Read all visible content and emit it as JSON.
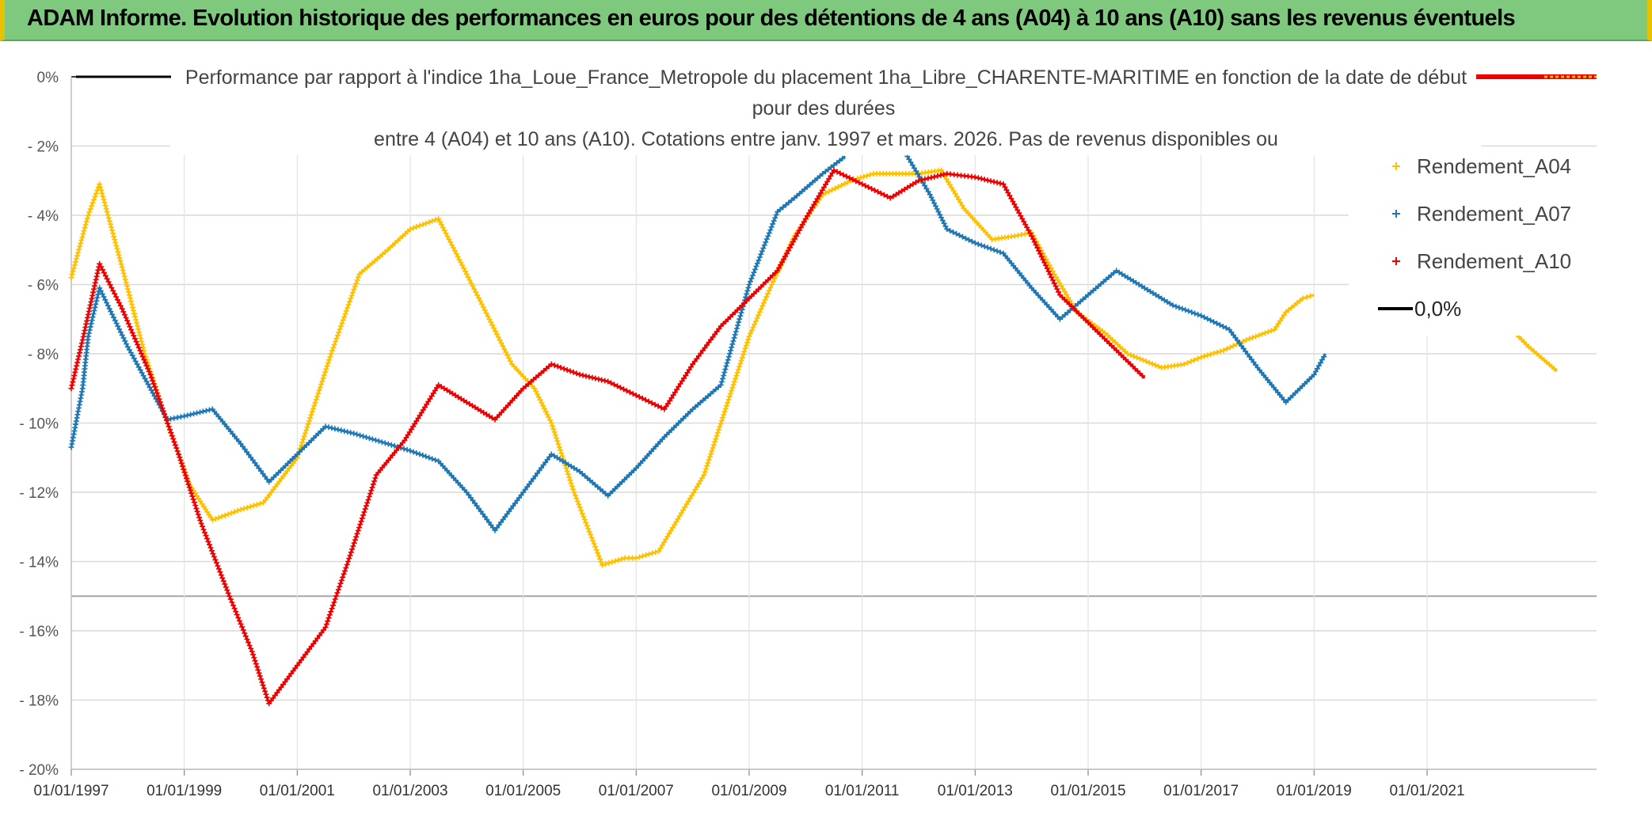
{
  "header": {
    "title": "ADAM Informe. Evolution historique des performances en euros pour des détentions de 4 ans (A04) à 10 ans (A10) sans les revenus éventuels",
    "background_color": "#7fc97f"
  },
  "chart_data": {
    "type": "line",
    "title_lines": [
      "Performance par rapport à l'indice 1ha_Loue_France_Metropole  du placement 1ha_Libre_CHARENTE-MARITIME en fonction de la date de début",
      "pour des durées",
      "entre 4 (A04) et 10 ans (A10). Cotations entre janv. 1997 et mars. 2026. Pas de revenus disponibles ou"
    ],
    "xlabel": "",
    "ylabel": "",
    "x_range": [
      1997.0,
      2024.0
    ],
    "ylim": [
      -20,
      0
    ],
    "x_tick_labels": [
      "01/01/1997",
      "01/01/1999",
      "01/01/2001",
      "01/01/2003",
      "01/01/2005",
      "01/01/2007",
      "01/01/2009",
      "01/01/2011",
      "01/01/2013",
      "01/01/2015",
      "01/01/2017",
      "01/01/2019",
      "01/01/2021"
    ],
    "x_tick_values": [
      1997,
      1999,
      2001,
      2003,
      2005,
      2007,
      2009,
      2011,
      2013,
      2015,
      2017,
      2019,
      2021
    ],
    "y_tick_labels": [
      "0%",
      "- 2%",
      "- 4%",
      "- 6%",
      "- 8%",
      "- 10%",
      "- 12%",
      "- 14%",
      "- 16%",
      "- 18%",
      "- 20%"
    ],
    "y_tick_values": [
      0,
      -2,
      -4,
      -6,
      -8,
      -10,
      -12,
      -14,
      -16,
      -18,
      -20
    ],
    "reference_line_y": -15,
    "grid": true,
    "legend_position": "right",
    "legend": [
      {
        "label": "Rendement_A04",
        "color": "#ffc000",
        "marker": "+"
      },
      {
        "label": "Rendement_A07",
        "color": "#1f78b4",
        "marker": "+"
      },
      {
        "label": "Rendement_A10",
        "color": "#ee0000",
        "marker": "+"
      },
      {
        "label": "0,0%",
        "color": "#000000",
        "marker": "line"
      }
    ],
    "series": [
      {
        "name": "Rendement_A04",
        "color": "#ffc000",
        "points": [
          [
            1997.0,
            -5.8
          ],
          [
            1997.3,
            -4.0
          ],
          [
            1997.5,
            -3.1
          ],
          [
            1997.9,
            -5.5
          ],
          [
            1998.3,
            -8.0
          ],
          [
            1998.7,
            -10.0
          ],
          [
            1999.1,
            -11.8
          ],
          [
            1999.5,
            -12.8
          ],
          [
            2000.0,
            -12.5
          ],
          [
            2000.4,
            -12.3
          ],
          [
            2001.0,
            -11.0
          ],
          [
            2001.6,
            -8.0
          ],
          [
            2002.1,
            -5.7
          ],
          [
            2002.6,
            -5.0
          ],
          [
            2003.0,
            -4.4
          ],
          [
            2003.5,
            -4.1
          ],
          [
            2004.0,
            -5.7
          ],
          [
            2004.4,
            -7.0
          ],
          [
            2004.8,
            -8.3
          ],
          [
            2005.2,
            -9.0
          ],
          [
            2005.5,
            -10.0
          ],
          [
            2005.9,
            -12.0
          ],
          [
            2006.4,
            -14.1
          ],
          [
            2006.8,
            -13.9
          ],
          [
            2007.0,
            -13.9
          ],
          [
            2007.4,
            -13.7
          ],
          [
            2007.8,
            -12.6
          ],
          [
            2008.2,
            -11.5
          ],
          [
            2008.6,
            -9.5
          ],
          [
            2009.0,
            -7.5
          ],
          [
            2009.4,
            -6.0
          ],
          [
            2009.8,
            -4.6
          ],
          [
            2010.3,
            -3.4
          ],
          [
            2010.8,
            -3.0
          ],
          [
            2011.2,
            -2.8
          ],
          [
            2011.6,
            -2.8
          ],
          [
            2012.0,
            -2.8
          ],
          [
            2012.4,
            -2.7
          ],
          [
            2012.8,
            -3.8
          ],
          [
            2013.3,
            -4.7
          ],
          [
            2013.7,
            -4.6
          ],
          [
            2014.0,
            -4.5
          ],
          [
            2014.4,
            -5.7
          ],
          [
            2014.8,
            -6.8
          ],
          [
            2015.3,
            -7.4
          ],
          [
            2015.7,
            -8.0
          ],
          [
            2016.3,
            -8.4
          ],
          [
            2016.7,
            -8.3
          ],
          [
            2017.0,
            -8.1
          ],
          [
            2017.4,
            -7.9
          ],
          [
            2017.8,
            -7.6
          ],
          [
            2018.3,
            -7.3
          ],
          [
            2018.5,
            -6.8
          ],
          [
            2018.8,
            -6.4
          ],
          [
            2019.0,
            -6.3
          ]
        ]
      },
      {
        "name": "Rendement_A04_end",
        "color": "#ffc000",
        "points": [
          [
            2022.5,
            -7.3
          ],
          [
            2022.8,
            -7.8
          ],
          [
            2023.3,
            -8.5
          ]
        ]
      },
      {
        "name": "Rendement_A07",
        "color": "#1f78b4",
        "points": [
          [
            1997.0,
            -10.7
          ],
          [
            1997.2,
            -9.0
          ],
          [
            1997.3,
            -7.5
          ],
          [
            1997.5,
            -6.1
          ],
          [
            1998.0,
            -7.8
          ],
          [
            1998.5,
            -9.3
          ],
          [
            1998.7,
            -9.9
          ],
          [
            1999.0,
            -9.8
          ],
          [
            1999.5,
            -9.6
          ],
          [
            2000.0,
            -10.6
          ],
          [
            2000.5,
            -11.7
          ],
          [
            2001.0,
            -10.9
          ],
          [
            2001.5,
            -10.1
          ],
          [
            2002.0,
            -10.3
          ],
          [
            2003.0,
            -10.8
          ],
          [
            2003.5,
            -11.1
          ],
          [
            2004.0,
            -12.0
          ],
          [
            2004.5,
            -13.1
          ],
          [
            2005.0,
            -12.0
          ],
          [
            2005.5,
            -10.9
          ],
          [
            2006.0,
            -11.4
          ],
          [
            2006.5,
            -12.1
          ],
          [
            2007.0,
            -11.3
          ],
          [
            2007.5,
            -10.4
          ],
          [
            2008.0,
            -9.6
          ],
          [
            2008.5,
            -8.9
          ],
          [
            2009.0,
            -6.0
          ],
          [
            2009.5,
            -3.9
          ],
          [
            2009.8,
            -3.5
          ],
          [
            2010.3,
            -2.8
          ],
          [
            2010.7,
            -2.3
          ]
        ]
      },
      {
        "name": "Rendement_A07_b",
        "color": "#1f78b4",
        "points": [
          [
            2011.8,
            -2.3
          ],
          [
            2012.2,
            -3.4
          ],
          [
            2012.5,
            -4.4
          ],
          [
            2013.0,
            -4.8
          ],
          [
            2013.5,
            -5.1
          ],
          [
            2014.0,
            -6.1
          ],
          [
            2014.5,
            -7.0
          ],
          [
            2015.0,
            -6.3
          ],
          [
            2015.5,
            -5.6
          ],
          [
            2016.0,
            -6.1
          ],
          [
            2016.5,
            -6.6
          ],
          [
            2017.0,
            -6.9
          ],
          [
            2017.5,
            -7.3
          ],
          [
            2018.0,
            -8.4
          ],
          [
            2018.5,
            -9.4
          ],
          [
            2019.0,
            -8.6
          ],
          [
            2019.2,
            -8.0
          ]
        ]
      },
      {
        "name": "Rendement_A10",
        "color": "#ee0000",
        "points": [
          [
            1997.0,
            -9.0
          ],
          [
            1997.2,
            -7.6
          ],
          [
            1997.5,
            -5.4
          ],
          [
            1997.9,
            -6.7
          ],
          [
            1998.4,
            -8.6
          ],
          [
            1998.9,
            -10.9
          ],
          [
            1999.3,
            -12.9
          ],
          [
            1999.8,
            -15.0
          ],
          [
            2000.2,
            -16.6
          ],
          [
            2000.5,
            -18.1
          ],
          [
            2001.0,
            -17.0
          ],
          [
            2001.5,
            -15.9
          ],
          [
            2001.9,
            -14.0
          ],
          [
            2002.4,
            -11.5
          ],
          [
            2002.9,
            -10.5
          ],
          [
            2003.5,
            -8.9
          ],
          [
            2004.0,
            -9.4
          ],
          [
            2004.5,
            -9.9
          ],
          [
            2005.0,
            -9.0
          ],
          [
            2005.5,
            -8.3
          ],
          [
            2006.0,
            -8.6
          ],
          [
            2006.5,
            -8.8
          ],
          [
            2007.0,
            -9.2
          ],
          [
            2007.5,
            -9.6
          ],
          [
            2008.0,
            -8.3
          ],
          [
            2008.5,
            -7.2
          ],
          [
            2009.0,
            -6.4
          ],
          [
            2009.5,
            -5.6
          ],
          [
            2010.0,
            -4.1
          ],
          [
            2010.5,
            -2.7
          ],
          [
            2011.0,
            -3.1
          ],
          [
            2011.5,
            -3.5
          ],
          [
            2012.0,
            -3.0
          ],
          [
            2012.5,
            -2.8
          ],
          [
            2013.0,
            -2.9
          ],
          [
            2013.5,
            -3.1
          ],
          [
            2014.0,
            -4.6
          ],
          [
            2014.5,
            -6.3
          ],
          [
            2015.0,
            -7.1
          ],
          [
            2015.5,
            -7.9
          ],
          [
            2016.0,
            -8.7
          ]
        ]
      }
    ]
  }
}
